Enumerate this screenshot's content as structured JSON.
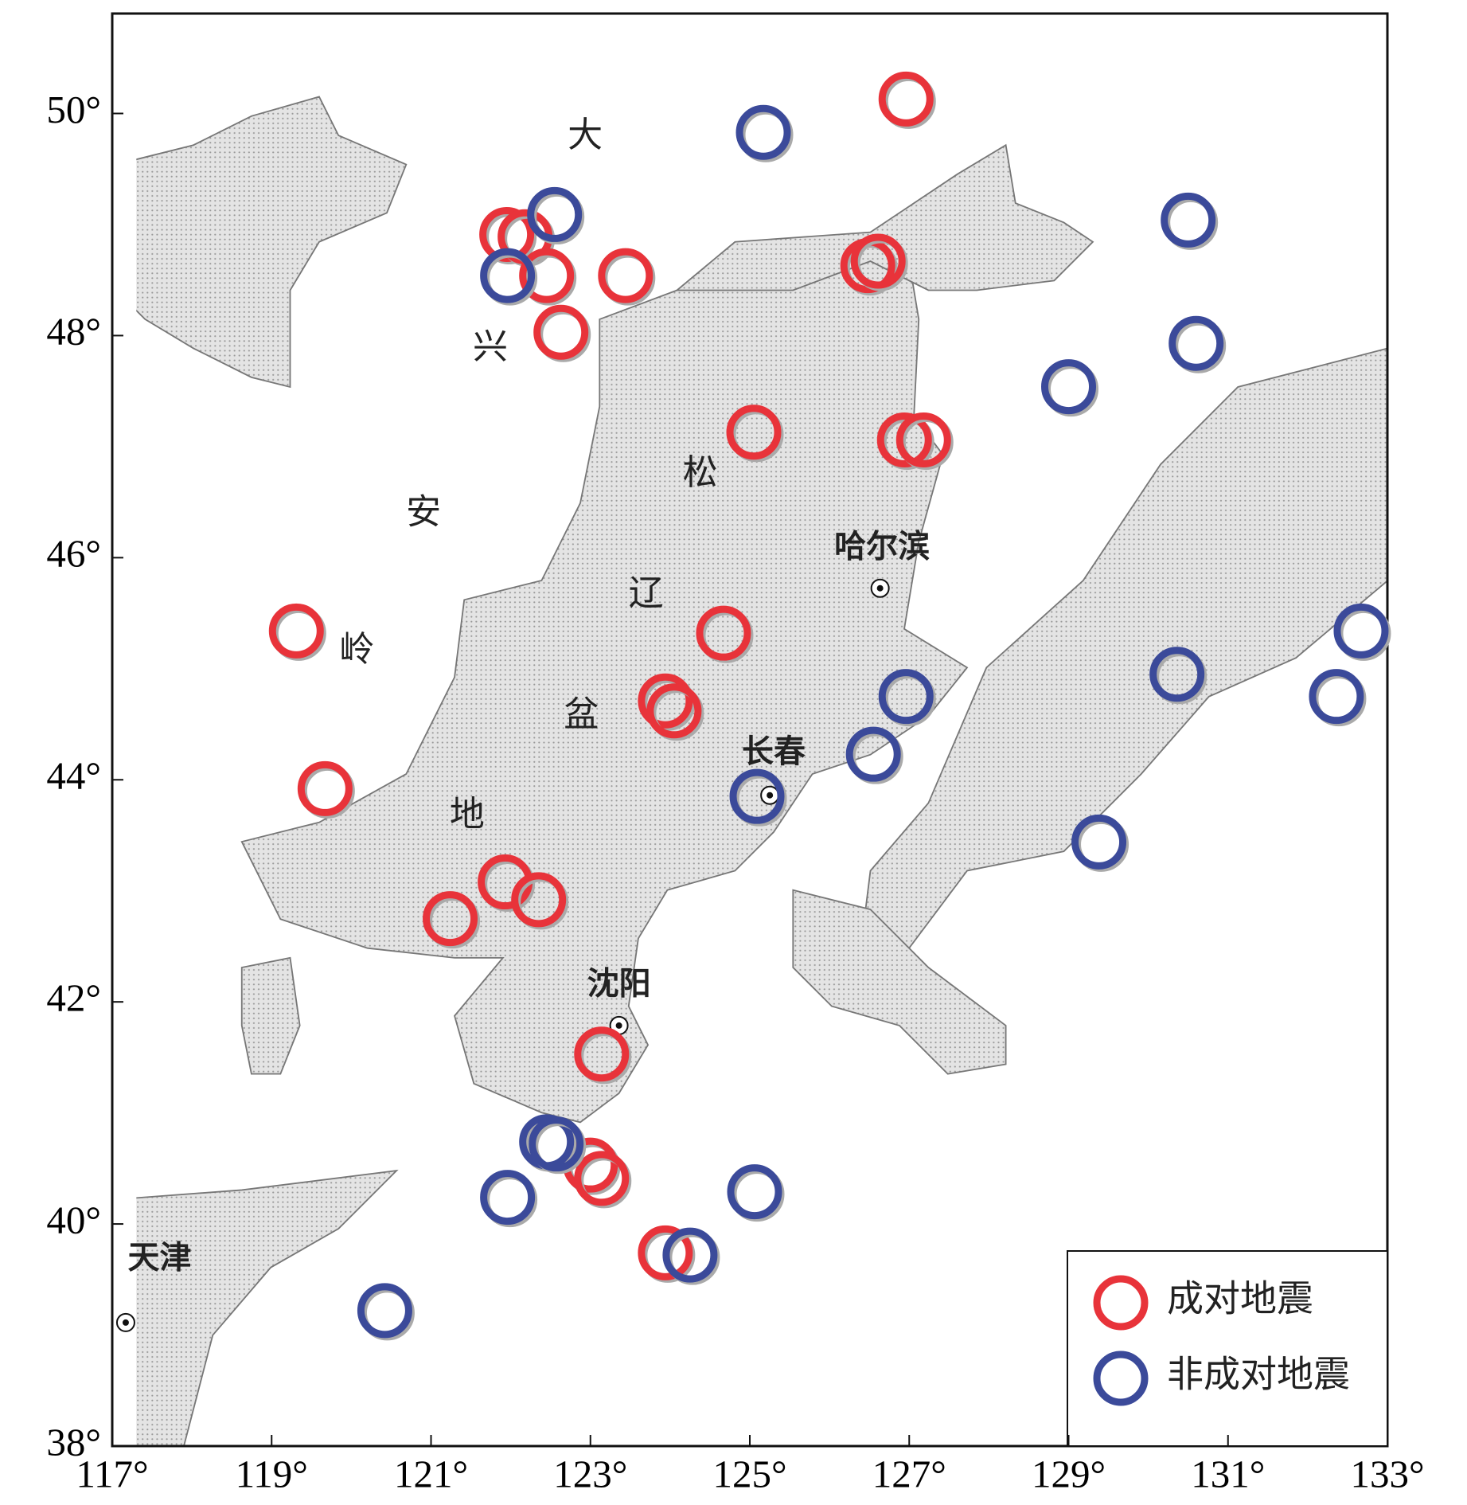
{
  "chart_data": {
    "type": "scatter",
    "xlim": [
      117,
      133
    ],
    "ylim": [
      38,
      50.9
    ],
    "xticks": [
      {
        "value": 117,
        "label": "117°"
      },
      {
        "value": 119,
        "label": "119°"
      },
      {
        "value": 121,
        "label": "121°"
      },
      {
        "value": 123,
        "label": "123°"
      },
      {
        "value": 125,
        "label": "125°"
      },
      {
        "value": 127,
        "label": "127°"
      },
      {
        "value": 129,
        "label": "129°"
      },
      {
        "value": 131,
        "label": "131°"
      },
      {
        "value": 133,
        "label": "133°"
      }
    ],
    "yticks": [
      {
        "value": 38,
        "label": "38°"
      },
      {
        "value": 40,
        "label": "40°"
      },
      {
        "value": 42,
        "label": "42°"
      },
      {
        "value": 44,
        "label": "44°"
      },
      {
        "value": 46,
        "label": "46°"
      },
      {
        "value": 48,
        "label": "48°"
      },
      {
        "value": 50,
        "label": "50°"
      }
    ],
    "legend": "lower right",
    "annotations": [
      "大",
      "兴",
      "安",
      "岭",
      "地",
      "松",
      "辽",
      "盆"
    ],
    "cities": [
      "哈尔滨",
      "长春",
      "沈阳",
      "天津"
    ],
    "series": [
      {
        "name": "成对地震",
        "color": "#e8333a",
        "x": [
          126.96,
          121.95,
          122.18,
          122.45,
          123.44,
          122.63,
          126.48,
          126.61,
          125.05,
          126.94,
          127.18,
          119.31,
          124.67,
          123.94,
          124.05,
          119.67,
          121.93,
          122.35,
          121.24,
          123.14,
          123.0,
          123.14,
          123.94
        ],
        "y": [
          50.13,
          48.91,
          48.89,
          48.54,
          48.54,
          48.03,
          48.63,
          48.67,
          47.13,
          47.06,
          47.06,
          45.34,
          45.32,
          44.71,
          44.62,
          43.92,
          43.08,
          42.92,
          42.75,
          41.53,
          40.53,
          40.41,
          39.74
        ]
      },
      {
        "name": "非成对地震",
        "color": "#3b4a9a",
        "x": [
          125.17,
          122.55,
          121.96,
          130.5,
          130.6,
          129.0,
          126.96,
          126.55,
          125.09,
          130.36,
          132.67,
          132.36,
          129.38,
          122.45,
          122.57,
          121.96,
          125.06,
          124.25,
          120.42
        ],
        "y": [
          49.83,
          49.09,
          48.54,
          49.04,
          47.93,
          47.54,
          44.75,
          44.23,
          43.85,
          44.95,
          45.34,
          44.75,
          43.44,
          40.74,
          40.72,
          40.24,
          40.29,
          39.72,
          39.22
        ]
      }
    ]
  }
}
